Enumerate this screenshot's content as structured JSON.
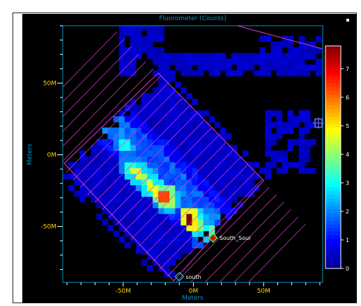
{
  "chart_data": {
    "type": "heatmap",
    "title": "Fluorometer (Counts)",
    "xlabel": "Meters",
    "ylabel": "Meters",
    "x_ticks": [
      "-50M",
      "0M",
      "50M"
    ],
    "y_ticks": [
      "50M",
      "0M",
      "-50M"
    ],
    "colorbar": {
      "min": 0,
      "max": 7.8,
      "ticks": [
        "0",
        "1",
        "2",
        "3",
        "4",
        "5",
        "6",
        "7"
      ],
      "colormap": [
        "#00008f",
        "#0000ff",
        "#0080ff",
        "#00ffff",
        "#80ff80",
        "#ffff00",
        "#ff8000",
        "#ff0000",
        "#800000"
      ]
    },
    "xlim": [
      -93,
      92
    ],
    "ylim": [
      -89,
      90
    ],
    "hotspots": [
      {
        "x": -54,
        "y": 19,
        "v": 1.8
      },
      {
        "x": -51,
        "y": 15,
        "v": 2.2
      },
      {
        "x": -48,
        "y": 7,
        "v": 3.0
      },
      {
        "x": -45,
        "y": 5,
        "v": 2.4
      },
      {
        "x": -45,
        "y": -8,
        "v": 3.2
      },
      {
        "x": -40,
        "y": -12,
        "v": 4.5
      },
      {
        "x": -38,
        "y": -14,
        "v": 4.2
      },
      {
        "x": -35,
        "y": -18,
        "v": 3.4
      },
      {
        "x": -31,
        "y": -21,
        "v": 4.6
      },
      {
        "x": -27,
        "y": -24,
        "v": 4.8
      },
      {
        "x": -23,
        "y": -27,
        "v": 3.6
      },
      {
        "x": -20,
        "y": -29,
        "v": 6.3
      },
      {
        "x": -17,
        "y": -32,
        "v": 4.1
      },
      {
        "x": -20,
        "y": -33,
        "v": 3.3
      },
      {
        "x": -3,
        "y": -44,
        "v": 7.8
      },
      {
        "x": 1,
        "y": -44,
        "v": 4.4
      },
      {
        "x": 1,
        "y": -48,
        "v": 5.0
      },
      {
        "x": 4,
        "y": -48,
        "v": 3.9
      },
      {
        "x": 10,
        "y": -54,
        "v": 3.0
      },
      {
        "x": 13,
        "y": -54,
        "v": 3.6
      },
      {
        "x": 7,
        "y": -58,
        "v": 2.6
      },
      {
        "x": 10,
        "y": -58,
        "v": 2.2
      },
      {
        "x": -26,
        "y": 4,
        "v": 1.6
      },
      {
        "x": -36,
        "y": 1,
        "v": 1.5
      },
      {
        "x": -8,
        "y": -23,
        "v": 1.5
      },
      {
        "x": -14,
        "y": -40,
        "v": 1.4
      }
    ],
    "markers": [
      {
        "name": "South_Sour",
        "x": 14,
        "y": -58,
        "color": "#d01010"
      },
      {
        "name": "south",
        "x": -10,
        "y": -85,
        "color": "#1e9ec8"
      }
    ],
    "legend": "colorbar right",
    "grid": false
  },
  "colors": {
    "axis": "#0096c8",
    "tick_label": "#ffd400",
    "boundary": "#e03cd8",
    "background": "#000000"
  }
}
